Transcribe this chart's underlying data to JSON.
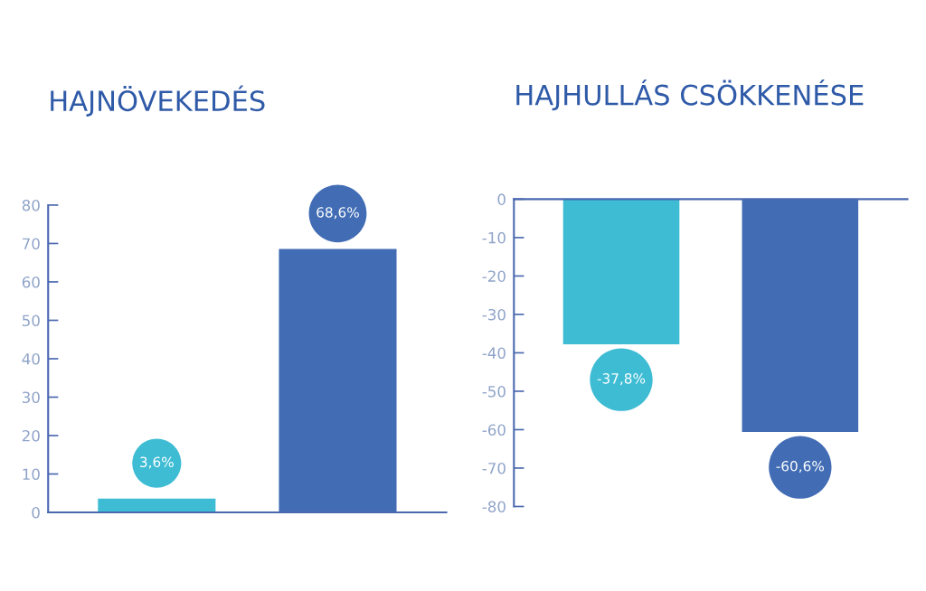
{
  "chart_data": [
    {
      "type": "bar",
      "title": "HAJNÖVEKEDÉS",
      "categories": [
        null,
        null
      ],
      "values": [
        3.6,
        68.6
      ],
      "colors": [
        "#3dbcd4",
        "#426db5"
      ],
      "value_labels": [
        "3,6%",
        "68,6%"
      ],
      "ylim": [
        0,
        80
      ],
      "yticks": [
        0,
        10,
        20,
        30,
        40,
        50,
        60,
        70,
        80
      ],
      "grid": false,
      "legend": false
    },
    {
      "type": "bar",
      "title": "HAJHULLÁS CSÖKKENÉSE",
      "categories": [
        null,
        null
      ],
      "values": [
        -37.8,
        -60.6
      ],
      "colors": [
        "#3dbcd4",
        "#426db5"
      ],
      "value_labels": [
        "-37,8%",
        "-60,6%"
      ],
      "ylim": [
        -80,
        0
      ],
      "yticks": [
        -80,
        -70,
        -60,
        -50,
        -40,
        -30,
        -20,
        -10,
        0
      ],
      "grid": false,
      "legend": false
    }
  ]
}
